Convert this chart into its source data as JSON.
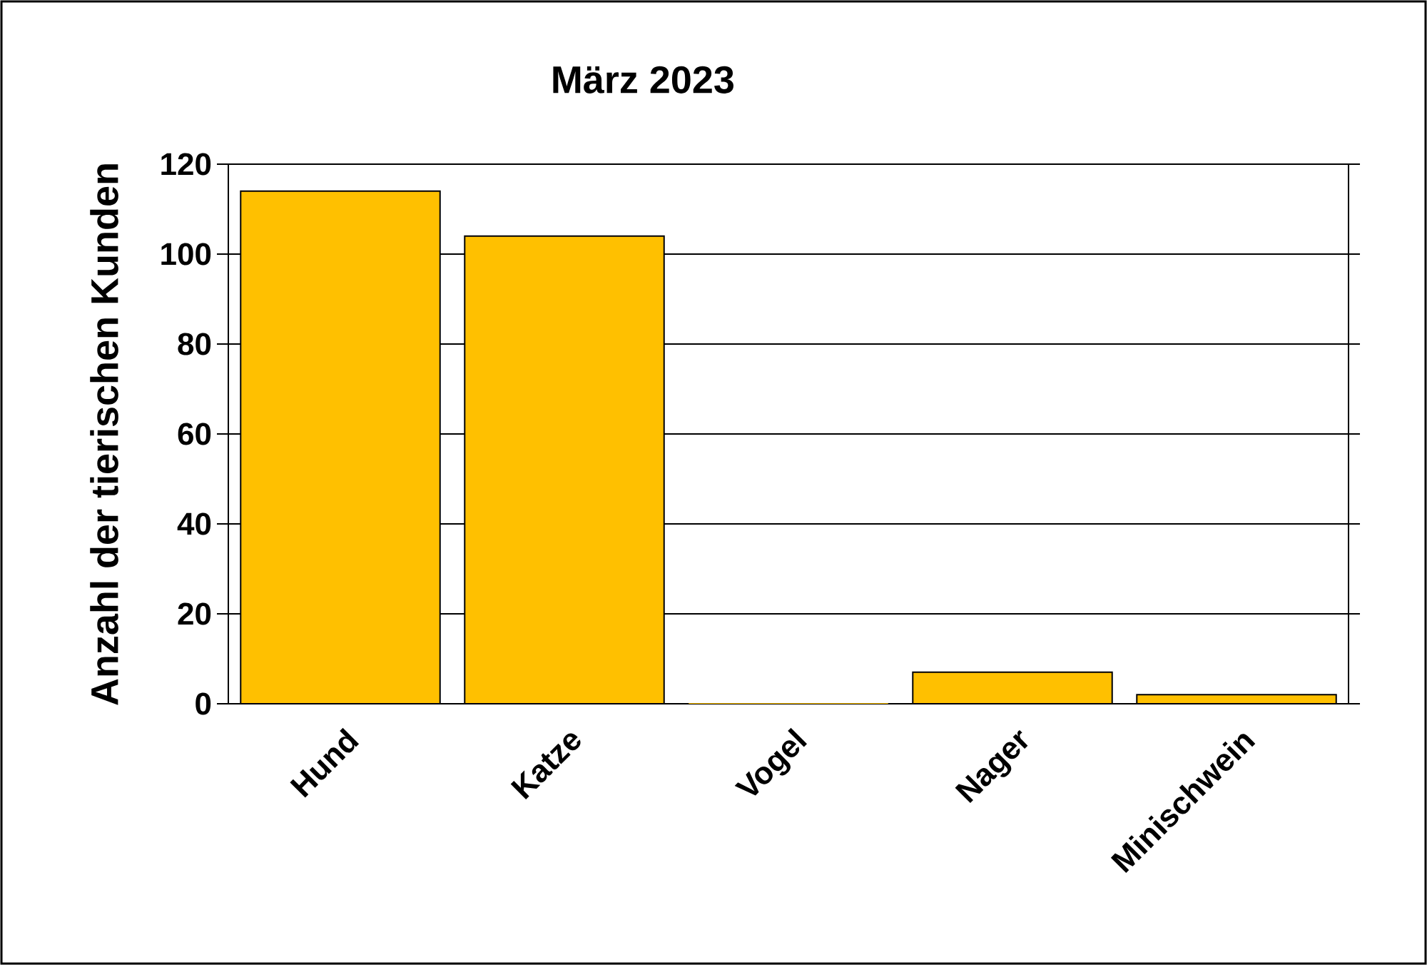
{
  "chart_data": {
    "type": "bar",
    "title": "März 2023",
    "ylabel": "Anzahl der tierischen Kunden",
    "categories": [
      "Hund",
      "Katze",
      "Vogel",
      "Nager",
      "Minischwein"
    ],
    "values": [
      114,
      104,
      0,
      7,
      2
    ],
    "color": "#ffc000",
    "ylim": [
      0,
      120
    ],
    "yticks": [
      0,
      20,
      40,
      60,
      80,
      100,
      120
    ],
    "grid": "y"
  }
}
